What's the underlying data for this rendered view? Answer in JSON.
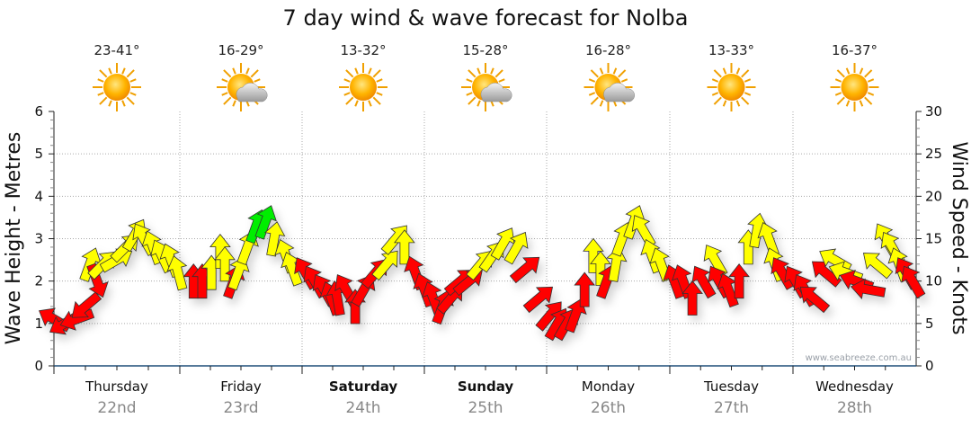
{
  "chart_data": {
    "type": "scatter",
    "title": "7 day wind & wave forecast for Nolba",
    "ylabel_left": "Wave Height - Metres",
    "ylabel_right": "Wind Speed - Knots",
    "ylim_left": [
      0,
      6
    ],
    "ylim_right": [
      0,
      30
    ],
    "yticks_left": [
      "0",
      "1",
      "2",
      "3",
      "4",
      "5",
      "6"
    ],
    "yticks_right": [
      "0",
      "5",
      "10",
      "15",
      "20",
      "25",
      "30"
    ],
    "grid": true,
    "watermark": "www.seabreeze.com.au",
    "days": [
      {
        "name": "Thursday",
        "date": "22nd",
        "temp": "23-41°",
        "weather": "sunny",
        "weekend": false
      },
      {
        "name": "Friday",
        "date": "23rd",
        "temp": "16-29°",
        "weather": "partly-cloudy",
        "weekend": false
      },
      {
        "name": "Saturday",
        "date": "24th",
        "temp": "13-32°",
        "weather": "sunny",
        "weekend": true
      },
      {
        "name": "Sunday",
        "date": "25th",
        "temp": "15-28°",
        "weather": "partly-cloudy",
        "weekend": true
      },
      {
        "name": "Monday",
        "date": "26th",
        "temp": "16-28°",
        "weather": "partly-cloudy",
        "weekend": false
      },
      {
        "name": "Tuesday",
        "date": "27th",
        "temp": "13-33°",
        "weather": "sunny",
        "weekend": false
      },
      {
        "name": "Wednesday",
        "date": "28th",
        "temp": "16-37°",
        "weather": "sunny",
        "weekend": false
      }
    ],
    "colors": {
      "red": "#ff0000",
      "yellow": "#ffff00",
      "green": "#00ee00"
    },
    "wind_series_note_units": "hour of week, knots, arrow bearing degrees",
    "wind": [
      [
        0,
        5.5,
        300,
        "red"
      ],
      [
        2.1,
        5,
        240,
        "red"
      ],
      [
        4.4,
        5.5,
        250,
        "red"
      ],
      [
        6.1,
        7,
        230,
        "red"
      ],
      [
        7,
        12,
        20,
        "yellow"
      ],
      [
        8.4,
        10,
        160,
        "red"
      ],
      [
        9.6,
        12,
        45,
        "yellow"
      ],
      [
        12.3,
        12.5,
        60,
        "yellow"
      ],
      [
        14,
        14,
        45,
        "yellow"
      ],
      [
        15.8,
        15.5,
        30,
        "yellow"
      ],
      [
        17.5,
        15,
        330,
        "yellow"
      ],
      [
        19.3,
        14,
        340,
        "yellow"
      ],
      [
        21,
        13,
        335,
        "yellow"
      ],
      [
        22.8,
        12.5,
        340,
        "yellow"
      ],
      [
        24.2,
        11,
        345,
        "yellow"
      ],
      [
        27.2,
        10,
        0,
        "red"
      ],
      [
        28.9,
        10,
        0,
        "red"
      ],
      [
        30.7,
        11,
        0,
        "yellow"
      ],
      [
        32.4,
        13.5,
        0,
        "yellow"
      ],
      [
        33.3,
        12,
        0,
        "yellow"
      ],
      [
        35,
        10,
        20,
        "red"
      ],
      [
        35.9,
        11,
        20,
        "yellow"
      ],
      [
        37.7,
        14,
        20,
        "yellow"
      ],
      [
        39.4,
        16.5,
        20,
        "green"
      ],
      [
        41.2,
        17,
        20,
        "green"
      ],
      [
        42.9,
        15,
        10,
        "yellow"
      ],
      [
        45.2,
        13,
        340,
        "yellow"
      ],
      [
        46.4,
        11.5,
        340,
        "yellow"
      ],
      [
        49,
        11,
        330,
        "red"
      ],
      [
        50.8,
        10,
        330,
        "red"
      ],
      [
        52.6,
        9,
        330,
        "red"
      ],
      [
        54,
        8,
        340,
        "red"
      ],
      [
        55.2,
        8,
        350,
        "red"
      ],
      [
        56.9,
        9,
        330,
        "red"
      ],
      [
        58.7,
        7,
        0,
        "red"
      ],
      [
        60.4,
        9,
        30,
        "red"
      ],
      [
        62.7,
        11,
        40,
        "red"
      ],
      [
        64.8,
        12,
        40,
        "yellow"
      ],
      [
        66.6,
        15,
        40,
        "yellow"
      ],
      [
        68.3,
        14,
        0,
        "yellow"
      ],
      [
        70.4,
        11,
        340,
        "red"
      ],
      [
        72.2,
        9,
        340,
        "red"
      ],
      [
        73.9,
        8,
        340,
        "red"
      ],
      [
        75.7,
        7,
        20,
        "red"
      ],
      [
        77.4,
        8,
        40,
        "red"
      ],
      [
        79.2,
        10,
        50,
        "red"
      ],
      [
        80.9,
        10,
        50,
        "red"
      ],
      [
        83.2,
        12,
        40,
        "yellow"
      ],
      [
        85.5,
        13,
        35,
        "yellow"
      ],
      [
        87.6,
        14.5,
        30,
        "yellow"
      ],
      [
        90.2,
        14,
        30,
        "yellow"
      ],
      [
        92,
        11.5,
        50,
        "red"
      ],
      [
        94.6,
        8,
        50,
        "red"
      ],
      [
        96.7,
        6,
        40,
        "red"
      ],
      [
        98.1,
        5,
        30,
        "red"
      ],
      [
        99.9,
        5,
        30,
        "red"
      ],
      [
        101.6,
        6,
        20,
        "red"
      ],
      [
        103.4,
        9,
        0,
        "red"
      ],
      [
        105.1,
        13,
        0,
        "yellow"
      ],
      [
        106.5,
        11.5,
        0,
        "yellow"
      ],
      [
        107.7,
        10,
        20,
        "red"
      ],
      [
        109.5,
        12,
        10,
        "yellow"
      ],
      [
        110.7,
        15,
        20,
        "yellow"
      ],
      [
        113,
        17,
        20,
        "yellow"
      ],
      [
        114.8,
        16,
        330,
        "yellow"
      ],
      [
        116.5,
        13,
        340,
        "yellow"
      ],
      [
        118.3,
        12,
        340,
        "yellow"
      ],
      [
        120.9,
        10,
        340,
        "red"
      ],
      [
        122.6,
        10,
        340,
        "red"
      ],
      [
        124.4,
        8,
        0,
        "red"
      ],
      [
        126.5,
        10,
        330,
        "red"
      ],
      [
        128.8,
        12.5,
        330,
        "yellow"
      ],
      [
        129.6,
        10,
        330,
        "red"
      ],
      [
        131.4,
        9,
        340,
        "red"
      ],
      [
        133.5,
        10,
        0,
        "red"
      ],
      [
        135.3,
        14,
        0,
        "yellow"
      ],
      [
        137,
        16,
        10,
        "yellow"
      ],
      [
        139.3,
        15,
        340,
        "yellow"
      ],
      [
        140.5,
        12,
        340,
        "yellow"
      ],
      [
        141.9,
        11,
        330,
        "red"
      ],
      [
        144.5,
        10,
        330,
        "red"
      ],
      [
        146.3,
        9,
        330,
        "red"
      ],
      [
        148,
        8,
        310,
        "red"
      ],
      [
        150.3,
        11,
        310,
        "red"
      ],
      [
        152.1,
        12.5,
        300,
        "yellow"
      ],
      [
        154.2,
        11,
        290,
        "yellow"
      ],
      [
        156.3,
        10,
        290,
        "red"
      ],
      [
        158.6,
        9,
        280,
        "red"
      ],
      [
        160.3,
        12,
        310,
        "yellow"
      ],
      [
        162.1,
        15,
        330,
        "yellow"
      ],
      [
        163.3,
        14,
        330,
        "yellow"
      ],
      [
        164.7,
        12,
        340,
        "yellow"
      ],
      [
        166.1,
        11,
        330,
        "red"
      ],
      [
        167.3,
        10,
        330,
        "red"
      ]
    ]
  }
}
